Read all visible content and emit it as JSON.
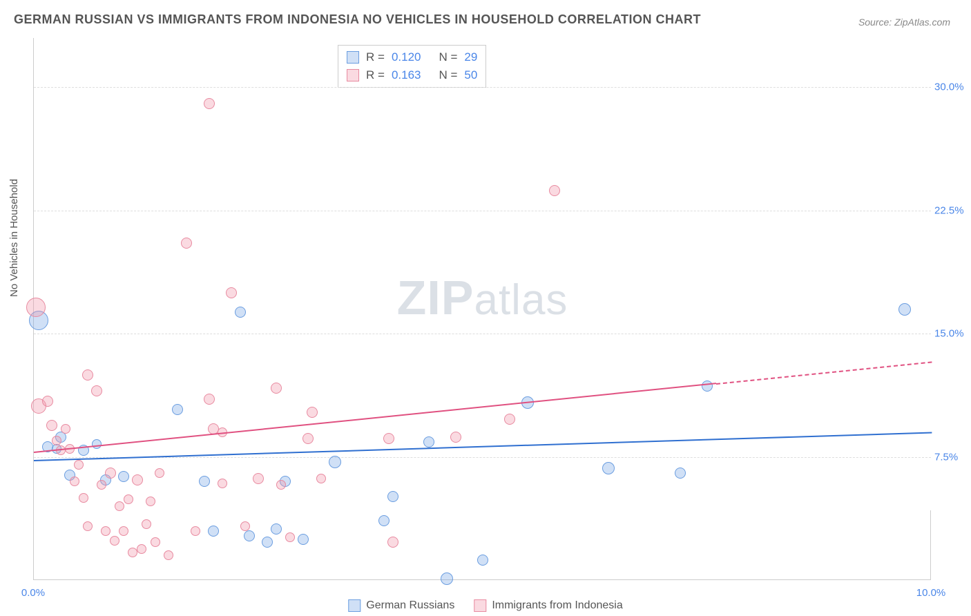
{
  "title": "GERMAN RUSSIAN VS IMMIGRANTS FROM INDONESIA NO VEHICLES IN HOUSEHOLD CORRELATION CHART",
  "source": "Source: ZipAtlas.com",
  "y_axis_label": "No Vehicles in Household",
  "watermark_zip": "ZIP",
  "watermark_atlas": "atlas",
  "chart": {
    "type": "scatter",
    "xlim": [
      0.0,
      10.0
    ],
    "ylim": [
      0.0,
      33.0
    ],
    "x_ticks": [
      {
        "v": 0.0,
        "label": "0.0%"
      },
      {
        "v": 10.0,
        "label": "10.0%"
      }
    ],
    "y_ticks": [
      {
        "v": 7.5,
        "label": "7.5%"
      },
      {
        "v": 15.0,
        "label": "15.0%"
      },
      {
        "v": 22.5,
        "label": "22.5%"
      },
      {
        "v": 30.0,
        "label": "30.0%"
      }
    ],
    "grid_color": "#dddddd",
    "background_color": "#ffffff",
    "series": [
      {
        "name": "German Russians",
        "fill": "rgba(120,165,230,0.35)",
        "stroke": "#6a9de0",
        "trend_color": "#2f6fd0",
        "trend": {
          "x1": 0.0,
          "y1": 7.3,
          "x2": 10.0,
          "y2": 9.0,
          "extend_x": 10.0
        },
        "R": "0.120",
        "N": "29",
        "points": [
          {
            "x": 0.05,
            "y": 15.8,
            "r": 14
          },
          {
            "x": 0.15,
            "y": 8.1,
            "r": 8
          },
          {
            "x": 0.25,
            "y": 8.0,
            "r": 7
          },
          {
            "x": 0.3,
            "y": 8.7,
            "r": 8
          },
          {
            "x": 0.4,
            "y": 6.4,
            "r": 8
          },
          {
            "x": 0.55,
            "y": 7.9,
            "r": 8
          },
          {
            "x": 0.7,
            "y": 8.3,
            "r": 7
          },
          {
            "x": 0.8,
            "y": 6.1,
            "r": 8
          },
          {
            "x": 1.0,
            "y": 6.3,
            "r": 8
          },
          {
            "x": 1.6,
            "y": 10.4,
            "r": 8
          },
          {
            "x": 1.9,
            "y": 6.0,
            "r": 8
          },
          {
            "x": 2.0,
            "y": 3.0,
            "r": 8
          },
          {
            "x": 2.3,
            "y": 16.3,
            "r": 8
          },
          {
            "x": 2.4,
            "y": 2.7,
            "r": 8
          },
          {
            "x": 2.6,
            "y": 2.3,
            "r": 8
          },
          {
            "x": 2.7,
            "y": 3.1,
            "r": 8
          },
          {
            "x": 2.8,
            "y": 6.0,
            "r": 8
          },
          {
            "x": 3.0,
            "y": 2.5,
            "r": 8
          },
          {
            "x": 3.35,
            "y": 7.2,
            "r": 9
          },
          {
            "x": 3.9,
            "y": 3.6,
            "r": 8
          },
          {
            "x": 4.0,
            "y": 5.1,
            "r": 8
          },
          {
            "x": 4.4,
            "y": 8.4,
            "r": 8
          },
          {
            "x": 4.6,
            "y": 0.1,
            "r": 9
          },
          {
            "x": 5.0,
            "y": 1.2,
            "r": 8
          },
          {
            "x": 5.5,
            "y": 10.8,
            "r": 9
          },
          {
            "x": 6.4,
            "y": 6.8,
            "r": 9
          },
          {
            "x": 7.2,
            "y": 6.5,
            "r": 8
          },
          {
            "x": 7.5,
            "y": 11.8,
            "r": 8
          },
          {
            "x": 9.7,
            "y": 16.5,
            "r": 9
          }
        ]
      },
      {
        "name": "Immigrants from Indonesia",
        "fill": "rgba(240,150,170,0.35)",
        "stroke": "#e88aa0",
        "trend_color": "#e05080",
        "trend": {
          "x1": 0.0,
          "y1": 7.8,
          "x2": 7.6,
          "y2": 12.0,
          "extend_x": 10.0
        },
        "R": "0.163",
        "N": "50",
        "points": [
          {
            "x": 0.02,
            "y": 16.6,
            "r": 14
          },
          {
            "x": 0.05,
            "y": 10.6,
            "r": 11
          },
          {
            "x": 0.15,
            "y": 10.9,
            "r": 8
          },
          {
            "x": 0.2,
            "y": 9.4,
            "r": 8
          },
          {
            "x": 0.25,
            "y": 8.5,
            "r": 7
          },
          {
            "x": 0.3,
            "y": 7.9,
            "r": 7
          },
          {
            "x": 0.35,
            "y": 9.2,
            "r": 7
          },
          {
            "x": 0.4,
            "y": 8.0,
            "r": 7
          },
          {
            "x": 0.45,
            "y": 6.0,
            "r": 7
          },
          {
            "x": 0.5,
            "y": 7.0,
            "r": 7
          },
          {
            "x": 0.55,
            "y": 5.0,
            "r": 7
          },
          {
            "x": 0.6,
            "y": 3.3,
            "r": 7
          },
          {
            "x": 0.6,
            "y": 12.5,
            "r": 8
          },
          {
            "x": 0.7,
            "y": 11.5,
            "r": 8
          },
          {
            "x": 0.75,
            "y": 5.8,
            "r": 7
          },
          {
            "x": 0.8,
            "y": 3.0,
            "r": 7
          },
          {
            "x": 0.85,
            "y": 6.5,
            "r": 8
          },
          {
            "x": 0.9,
            "y": 2.4,
            "r": 7
          },
          {
            "x": 0.95,
            "y": 4.5,
            "r": 7
          },
          {
            "x": 1.0,
            "y": 3.0,
            "r": 7
          },
          {
            "x": 1.05,
            "y": 4.9,
            "r": 7
          },
          {
            "x": 1.1,
            "y": 1.7,
            "r": 7
          },
          {
            "x": 1.15,
            "y": 6.1,
            "r": 8
          },
          {
            "x": 1.2,
            "y": 1.9,
            "r": 7
          },
          {
            "x": 1.25,
            "y": 3.4,
            "r": 7
          },
          {
            "x": 1.3,
            "y": 4.8,
            "r": 7
          },
          {
            "x": 1.35,
            "y": 2.3,
            "r": 7
          },
          {
            "x": 1.4,
            "y": 6.5,
            "r": 7
          },
          {
            "x": 1.5,
            "y": 1.5,
            "r": 7
          },
          {
            "x": 1.7,
            "y": 20.5,
            "r": 8
          },
          {
            "x": 1.8,
            "y": 3.0,
            "r": 7
          },
          {
            "x": 1.95,
            "y": 29.0,
            "r": 8
          },
          {
            "x": 1.95,
            "y": 11.0,
            "r": 8
          },
          {
            "x": 2.0,
            "y": 9.2,
            "r": 8
          },
          {
            "x": 2.1,
            "y": 9.0,
            "r": 7
          },
          {
            "x": 2.1,
            "y": 5.9,
            "r": 7
          },
          {
            "x": 2.2,
            "y": 17.5,
            "r": 8
          },
          {
            "x": 2.35,
            "y": 3.3,
            "r": 7
          },
          {
            "x": 2.5,
            "y": 6.2,
            "r": 8
          },
          {
            "x": 2.7,
            "y": 11.7,
            "r": 8
          },
          {
            "x": 2.75,
            "y": 5.8,
            "r": 7
          },
          {
            "x": 2.85,
            "y": 2.6,
            "r": 7
          },
          {
            "x": 3.05,
            "y": 8.6,
            "r": 8
          },
          {
            "x": 3.1,
            "y": 10.2,
            "r": 8
          },
          {
            "x": 3.2,
            "y": 6.2,
            "r": 7
          },
          {
            "x": 3.95,
            "y": 8.6,
            "r": 8
          },
          {
            "x": 4.0,
            "y": 2.3,
            "r": 8
          },
          {
            "x": 4.7,
            "y": 8.7,
            "r": 8
          },
          {
            "x": 5.3,
            "y": 9.8,
            "r": 8
          },
          {
            "x": 5.8,
            "y": 23.7,
            "r": 8
          }
        ]
      }
    ]
  },
  "legend": {
    "series1_label": "German Russians",
    "series2_label": "Immigrants from Indonesia"
  },
  "stats_labels": {
    "R": "R =",
    "N": "N ="
  }
}
